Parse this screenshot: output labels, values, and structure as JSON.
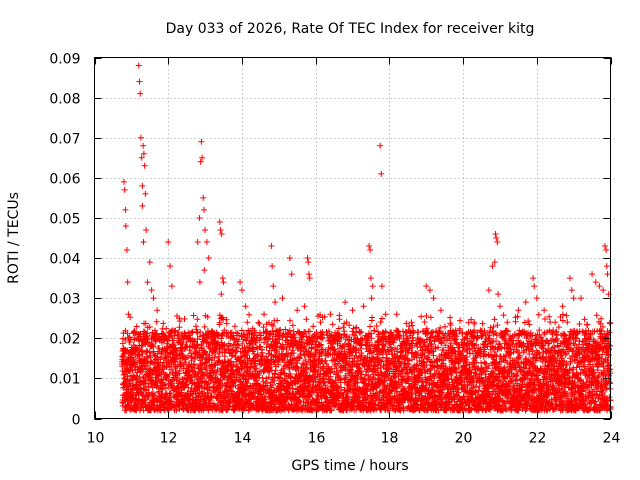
{
  "chart_data": {
    "type": "scatter",
    "title": "Day 033 of 2026, Rate Of TEC Index for receiver kitg",
    "xlabel": "GPS time / hours",
    "ylabel": "ROTI / TECUs",
    "xlim": [
      10,
      24
    ],
    "ylim": [
      0,
      0.09
    ],
    "x_ticks": [
      10,
      12,
      14,
      16,
      18,
      20,
      22,
      24
    ],
    "x_tick_labels": [
      "10",
      "12",
      "14",
      "16",
      "18",
      "20",
      "22",
      "24"
    ],
    "y_ticks": [
      0,
      0.01,
      0.02,
      0.03,
      0.04,
      0.05,
      0.06,
      0.07,
      0.08,
      0.09
    ],
    "y_tick_labels": [
      "0",
      "0.01",
      "0.02",
      "0.03",
      "0.04",
      "0.05",
      "0.06",
      "0.07",
      "0.08",
      "0.09"
    ],
    "grid": true,
    "marker": "+",
    "color": "#ff0000",
    "series": [
      {
        "name": "ROTI",
        "points": [
          [
            10.8,
            0.059
          ],
          [
            10.82,
            0.057
          ],
          [
            10.84,
            0.052
          ],
          [
            10.85,
            0.048
          ],
          [
            10.88,
            0.042
          ],
          [
            10.9,
            0.034
          ],
          [
            10.92,
            0.026
          ],
          [
            11.2,
            0.088
          ],
          [
            11.22,
            0.084
          ],
          [
            11.24,
            0.081
          ],
          [
            11.26,
            0.07
          ],
          [
            11.28,
            0.065
          ],
          [
            11.3,
            0.058
          ],
          [
            11.32,
            0.068
          ],
          [
            11.34,
            0.066
          ],
          [
            11.36,
            0.063
          ],
          [
            11.38,
            0.056
          ],
          [
            11.4,
            0.047
          ],
          [
            11.3,
            0.053
          ],
          [
            11.33,
            0.044
          ],
          [
            11.44,
            0.034
          ],
          [
            11.55,
            0.032
          ],
          [
            11.6,
            0.03
          ],
          [
            11.7,
            0.027
          ],
          [
            11.5,
            0.039
          ],
          [
            12.0,
            0.044
          ],
          [
            12.05,
            0.038
          ],
          [
            12.1,
            0.033
          ],
          [
            12.3,
            0.025
          ],
          [
            12.8,
            0.044
          ],
          [
            12.85,
            0.05
          ],
          [
            12.88,
            0.064
          ],
          [
            12.9,
            0.069
          ],
          [
            12.92,
            0.065
          ],
          [
            12.95,
            0.055
          ],
          [
            12.97,
            0.052
          ],
          [
            13.0,
            0.047
          ],
          [
            13.05,
            0.044
          ],
          [
            13.1,
            0.04
          ],
          [
            12.98,
            0.037
          ],
          [
            12.86,
            0.034
          ],
          [
            13.4,
            0.049
          ],
          [
            13.42,
            0.047
          ],
          [
            13.45,
            0.046
          ],
          [
            13.48,
            0.035
          ],
          [
            13.5,
            0.034
          ],
          [
            13.44,
            0.031
          ],
          [
            13.95,
            0.034
          ],
          [
            14.0,
            0.032
          ],
          [
            14.1,
            0.028
          ],
          [
            14.6,
            0.026
          ],
          [
            14.8,
            0.043
          ],
          [
            14.82,
            0.038
          ],
          [
            14.85,
            0.033
          ],
          [
            14.9,
            0.029
          ],
          [
            15.1,
            0.03
          ],
          [
            15.3,
            0.04
          ],
          [
            15.35,
            0.036
          ],
          [
            15.5,
            0.027
          ],
          [
            15.78,
            0.04
          ],
          [
            15.8,
            0.039
          ],
          [
            15.82,
            0.036
          ],
          [
            15.84,
            0.035
          ],
          [
            15.7,
            0.028
          ],
          [
            16.4,
            0.026
          ],
          [
            16.8,
            0.029
          ],
          [
            17.0,
            0.027
          ],
          [
            17.3,
            0.028
          ],
          [
            17.45,
            0.043
          ],
          [
            17.48,
            0.042
          ],
          [
            17.5,
            0.035
          ],
          [
            17.55,
            0.033
          ],
          [
            17.52,
            0.03
          ],
          [
            17.75,
            0.068
          ],
          [
            17.78,
            0.061
          ],
          [
            17.8,
            0.033
          ],
          [
            17.9,
            0.026
          ],
          [
            18.2,
            0.026
          ],
          [
            18.6,
            0.024
          ],
          [
            19.0,
            0.033
          ],
          [
            19.1,
            0.032
          ],
          [
            19.2,
            0.03
          ],
          [
            19.4,
            0.027
          ],
          [
            19.8,
            0.022
          ],
          [
            20.3,
            0.024
          ],
          [
            20.7,
            0.032
          ],
          [
            20.8,
            0.038
          ],
          [
            20.88,
            0.046
          ],
          [
            20.9,
            0.045
          ],
          [
            20.93,
            0.044
          ],
          [
            20.86,
            0.039
          ],
          [
            20.95,
            0.031
          ],
          [
            21.0,
            0.028
          ],
          [
            21.2,
            0.024
          ],
          [
            21.5,
            0.027
          ],
          [
            21.7,
            0.029
          ],
          [
            21.9,
            0.035
          ],
          [
            21.93,
            0.033
          ],
          [
            22.0,
            0.03
          ],
          [
            22.2,
            0.027
          ],
          [
            22.5,
            0.024
          ],
          [
            22.7,
            0.028
          ],
          [
            22.9,
            0.035
          ],
          [
            22.95,
            0.032
          ],
          [
            23.0,
            0.03
          ],
          [
            23.2,
            0.03
          ],
          [
            23.5,
            0.036
          ],
          [
            23.6,
            0.034
          ],
          [
            23.7,
            0.033
          ],
          [
            23.8,
            0.032
          ],
          [
            23.85,
            0.043
          ],
          [
            23.88,
            0.042
          ],
          [
            23.9,
            0.038
          ],
          [
            23.92,
            0.036
          ],
          [
            23.95,
            0.031
          ]
        ]
      }
    ],
    "dense_band": {
      "x_range": [
        10.75,
        24.0
      ],
      "y_min": 0.002,
      "y_typical_max": 0.022,
      "y_occasional_max": 0.026,
      "note": "dense cloud of ROTI samples"
    }
  }
}
